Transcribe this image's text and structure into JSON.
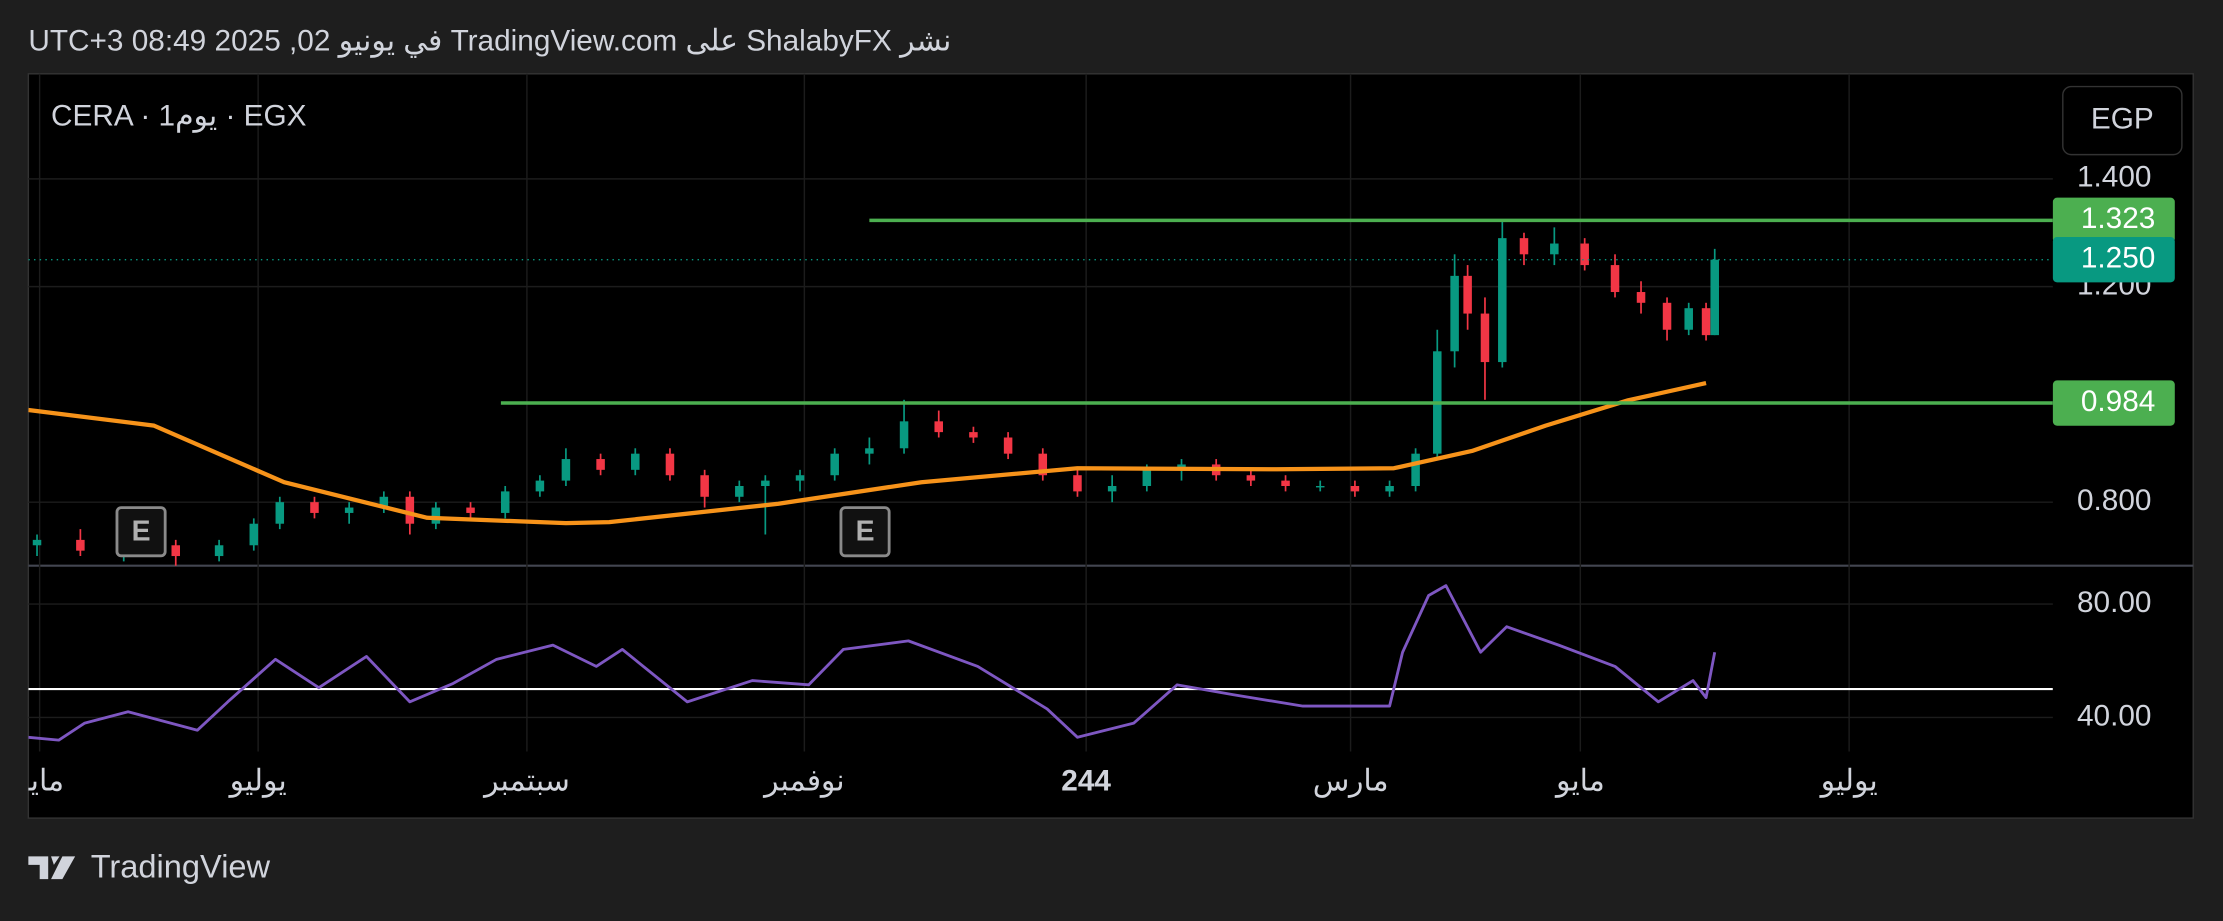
{
  "header": {
    "published": "نشر ShalabyFX على TradingView.com في يونيو 02, 2025 08:49 UTC+3"
  },
  "toolbar": {
    "currency": "EGP"
  },
  "footer": {
    "brand": "TradingView"
  },
  "chart_data": [
    {
      "type": "candlestick",
      "title": "CERA · 1يوم · EGX",
      "up_color": "#089981",
      "down_color": "#f23645",
      "xlim": [
        0,
        467
      ],
      "xticks": [
        {
          "value": 2.6,
          "label": "مايو"
        },
        {
          "value": 53,
          "label": "يوليو"
        },
        {
          "value": 115,
          "label": "سبتمبر"
        },
        {
          "value": 179,
          "label": "نوفمبر"
        },
        244,
        {
          "value": 305,
          "label": "مارس"
        },
        {
          "value": 358,
          "label": "مايو"
        },
        {
          "value": 420,
          "label": "يوليو"
        }
      ],
      "ylim": [
        0.682,
        1.595
      ],
      "yticks": [
        {
          "value": 1.4,
          "label": "1.400"
        },
        {
          "value": 1.2,
          "label": "1.200"
        },
        {
          "value": 0.8,
          "label": "0.800"
        }
      ],
      "grid": true,
      "x": [
        2,
        12,
        22,
        34,
        44,
        52,
        58,
        66,
        74,
        82,
        88,
        94,
        102,
        110,
        118,
        124,
        132,
        140,
        148,
        156,
        164,
        170,
        178,
        186,
        194,
        202,
        210,
        218,
        226,
        234,
        242,
        250,
        258,
        266,
        274,
        282,
        290,
        298,
        306,
        314,
        320,
        325,
        329,
        332,
        336,
        340,
        345,
        352,
        359,
        366,
        372,
        378,
        383,
        387,
        389
      ],
      "open": [
        0.72,
        0.73,
        0.71,
        0.72,
        0.7,
        0.72,
        0.76,
        0.8,
        0.78,
        0.79,
        0.81,
        0.76,
        0.79,
        0.78,
        0.82,
        0.84,
        0.88,
        0.86,
        0.89,
        0.85,
        0.81,
        0.83,
        0.84,
        0.85,
        0.89,
        0.9,
        0.95,
        0.93,
        0.92,
        0.89,
        0.85,
        0.82,
        0.83,
        0.86,
        0.87,
        0.85,
        0.84,
        0.83,
        0.83,
        0.82,
        0.83,
        0.89,
        1.08,
        1.22,
        1.15,
        1.06,
        1.29,
        1.26,
        1.28,
        1.24,
        1.19,
        1.17,
        1.12,
        1.16,
        1.11
      ],
      "high": [
        0.74,
        0.75,
        0.74,
        0.73,
        0.73,
        0.77,
        0.81,
        0.81,
        0.8,
        0.82,
        0.82,
        0.8,
        0.8,
        0.83,
        0.85,
        0.9,
        0.89,
        0.9,
        0.9,
        0.86,
        0.84,
        0.85,
        0.86,
        0.9,
        0.92,
        0.99,
        0.97,
        0.94,
        0.93,
        0.9,
        0.86,
        0.85,
        0.87,
        0.88,
        0.88,
        0.86,
        0.85,
        0.84,
        0.84,
        0.84,
        0.9,
        1.12,
        1.26,
        1.24,
        1.18,
        1.323,
        1.3,
        1.31,
        1.29,
        1.26,
        1.21,
        1.18,
        1.17,
        1.17,
        1.27
      ],
      "low": [
        0.7,
        0.7,
        0.69,
        0.68,
        0.69,
        0.71,
        0.75,
        0.77,
        0.76,
        0.78,
        0.74,
        0.75,
        0.77,
        0.77,
        0.81,
        0.83,
        0.85,
        0.85,
        0.84,
        0.79,
        0.8,
        0.74,
        0.82,
        0.84,
        0.87,
        0.89,
        0.92,
        0.91,
        0.88,
        0.84,
        0.81,
        0.8,
        0.82,
        0.84,
        0.84,
        0.83,
        0.82,
        0.82,
        0.81,
        0.81,
        0.82,
        0.88,
        1.05,
        1.12,
        0.99,
        1.05,
        1.24,
        1.24,
        1.23,
        1.18,
        1.15,
        1.1,
        1.11,
        1.1,
        1.11
      ],
      "close": [
        0.73,
        0.71,
        0.72,
        0.7,
        0.72,
        0.76,
        0.8,
        0.78,
        0.79,
        0.81,
        0.76,
        0.79,
        0.78,
        0.82,
        0.84,
        0.88,
        0.86,
        0.89,
        0.85,
        0.81,
        0.83,
        0.84,
        0.85,
        0.89,
        0.9,
        0.95,
        0.93,
        0.92,
        0.89,
        0.85,
        0.82,
        0.83,
        0.86,
        0.87,
        0.85,
        0.84,
        0.83,
        0.83,
        0.82,
        0.83,
        0.89,
        1.08,
        1.22,
        1.15,
        1.06,
        1.29,
        1.26,
        1.28,
        1.24,
        1.19,
        1.17,
        1.12,
        1.16,
        1.11,
        1.25
      ],
      "moving_average": {
        "color": "#f7931a",
        "x": [
          0,
          29,
          59,
          92,
          124,
          134,
          173,
          206,
          242,
          288,
          315,
          333,
          350,
          369,
          387
        ],
        "values": [
          0.971,
          0.942,
          0.837,
          0.771,
          0.761,
          0.763,
          0.797,
          0.837,
          0.863,
          0.861,
          0.863,
          0.895,
          0.942,
          0.989,
          1.021
        ]
      },
      "price_labels": [
        {
          "value": 1.323,
          "label": "1.323",
          "color": "#4caf50",
          "line_from": 194,
          "line_style": "solid"
        },
        {
          "value": 1.25,
          "label": "1.250",
          "color": "#089981",
          "line_from": 0,
          "line_style": "dotted"
        },
        {
          "value": 0.984,
          "label": "0.984",
          "color": "#4caf50",
          "line_from": 109,
          "line_style": "solid"
        }
      ],
      "earnings_markers": [
        {
          "x": 26,
          "label": "E"
        },
        {
          "x": 193,
          "label": "E"
        }
      ]
    },
    {
      "type": "line",
      "color": "#7e57c2",
      "level": 50,
      "xlim": [
        0,
        467
      ],
      "ylim": [
        28,
        93.5
      ],
      "yticks": [
        {
          "value": 80,
          "label": "80.00"
        },
        {
          "value": 40,
          "label": "40.00"
        }
      ],
      "x": [
        0,
        7,
        13,
        23,
        39,
        46,
        57,
        67,
        78,
        88,
        98,
        108,
        121,
        131,
        137,
        152,
        167,
        180,
        188,
        203,
        219,
        235,
        242,
        255,
        265,
        278,
        294,
        314,
        317,
        323,
        327,
        335,
        341,
        353,
        366,
        376,
        384,
        387,
        389
      ],
      "values": [
        33,
        32,
        38,
        42,
        35.5,
        45.5,
        60.5,
        50.5,
        61.5,
        45.5,
        52,
        60.5,
        65.5,
        58,
        64,
        45.5,
        53,
        51.5,
        64,
        67,
        58,
        43,
        33,
        38,
        51.5,
        48,
        44,
        44,
        63,
        83,
        86.5,
        63,
        72,
        65.5,
        58,
        45.5,
        53,
        47,
        63
      ]
    }
  ]
}
